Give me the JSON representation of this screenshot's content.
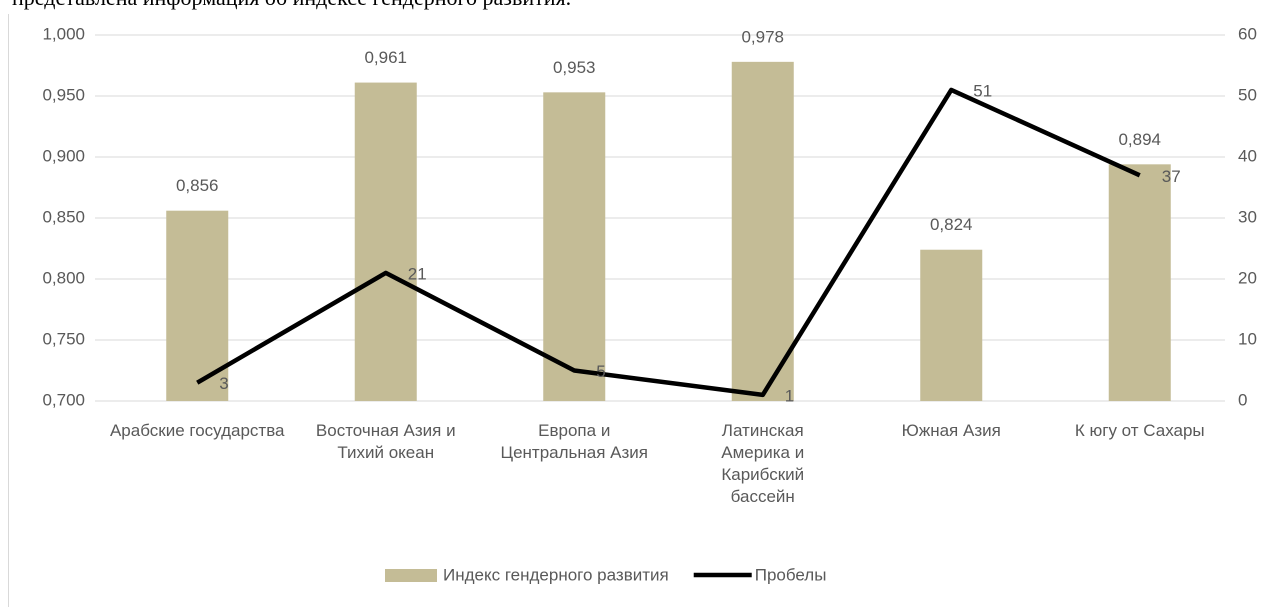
{
  "intro_text": "представлена информация об индексе гендерного развития.",
  "chart_data": {
    "type": "bar_line",
    "categories": [
      "Арабские государства",
      "Восточная Азия и Тихий океан",
      "Европа и Центральная Азия",
      "Латинская Америка и Карибский бассейн",
      "Южная Азия",
      "К югу от Сахары"
    ],
    "series": [
      {
        "name": "Индекс гендерного развития",
        "type": "bar",
        "color": "#c4bc96",
        "values": [
          0.856,
          0.961,
          0.953,
          0.978,
          0.824,
          0.894
        ],
        "value_labels": [
          "0,856",
          "0,961",
          "0,953",
          "0,978",
          "0,824",
          "0,894"
        ]
      },
      {
        "name": "Пробелы",
        "type": "line",
        "axis": "y2",
        "color": "#000000",
        "values": [
          3,
          21,
          5,
          1,
          51,
          37
        ]
      }
    ],
    "ylim": [
      0.7,
      1.0
    ],
    "yticks": [
      {
        "value": 0.7,
        "label": "0,700"
      },
      {
        "value": 0.75,
        "label": "0,750"
      },
      {
        "value": 0.8,
        "label": "0,800"
      },
      {
        "value": 0.85,
        "label": "0,850"
      },
      {
        "value": 0.9,
        "label": "0,900"
      },
      {
        "value": 0.95,
        "label": "0,950"
      },
      {
        "value": 1.0,
        "label": "1,000"
      }
    ],
    "y2lim": [
      0,
      60
    ],
    "y2ticks": [
      0,
      10,
      20,
      30,
      40,
      50,
      60
    ],
    "grid": true,
    "legend": "bottom"
  }
}
